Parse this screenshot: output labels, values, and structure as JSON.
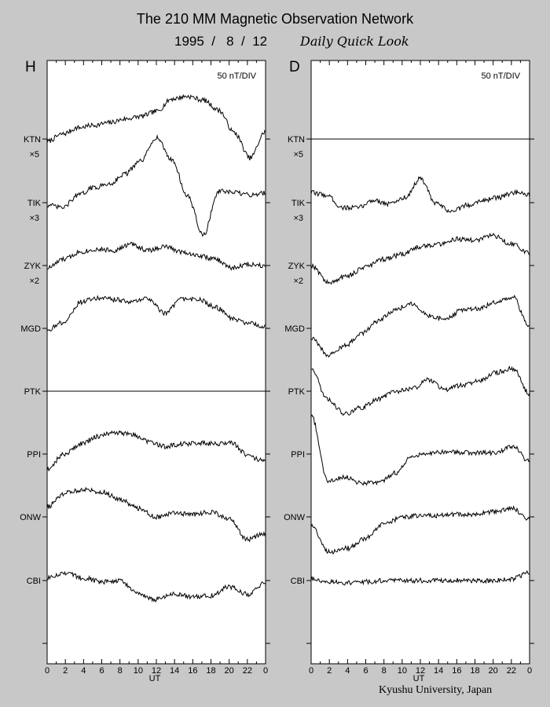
{
  "header": {
    "title": "The 210 MM Magnetic Observation Network",
    "date": "1995  /   8  /  12",
    "subtitle": "Daily Quick Look"
  },
  "footer": {
    "credit": "Kyushu University, Japan"
  },
  "chart_data": {
    "type": "line",
    "scale_label": "50 nT/DIV",
    "xlabel": "UT",
    "x_ticks": [
      "0",
      "2",
      "4",
      "6",
      "8",
      "10",
      "12",
      "14",
      "16",
      "18",
      "20",
      "22",
      "0"
    ],
    "xlim": [
      0,
      24
    ],
    "background": "#ffffff",
    "line_color": "#000000",
    "panels": [
      {
        "name": "H",
        "stations": [
          {
            "code": "KTN",
            "multiplier": "×5",
            "values": [
              -0.2,
              0.4,
              0.9,
              1.1,
              1.3,
              1.6,
              1.8,
              2.2,
              3.2,
              3.4,
              3.1,
              2.3,
              0.5,
              -1.5,
              0.6
            ]
          },
          {
            "code": "TIK",
            "multiplier": "×3",
            "values": [
              -0.2,
              -0.4,
              0.6,
              1.2,
              1.5,
              2.3,
              3.3,
              5.2,
              3.4,
              0.5,
              -2.6,
              0.9,
              0.8,
              0.6,
              0.8
            ]
          },
          {
            "code": "ZYK",
            "multiplier": "×2",
            "values": [
              -0.2,
              0.5,
              1.1,
              1.3,
              1.2,
              1.7,
              1.2,
              1.5,
              1.1,
              0.8,
              0.5,
              -0.2,
              0.1,
              0.0
            ]
          },
          {
            "code": "MGD",
            "multiplier": "",
            "values": [
              -0.1,
              0.5,
              2.1,
              2.4,
              2.3,
              2.1,
              2.4,
              1.2,
              2.3,
              2.3,
              1.7,
              0.8,
              0.4,
              0.1
            ]
          },
          {
            "code": "PTK",
            "multiplier": "",
            "values": [
              0,
              0,
              0,
              0,
              0,
              0,
              0,
              0,
              0,
              0,
              0,
              0,
              0
            ]
          },
          {
            "code": "PPI",
            "multiplier": "",
            "values": [
              -1.2,
              0.0,
              0.8,
              1.4,
              1.7,
              1.6,
              1.0,
              0.6,
              0.8,
              0.9,
              0.8,
              0.9,
              -0.2,
              -0.6
            ]
          },
          {
            "code": "ONW",
            "multiplier": "",
            "values": [
              0.8,
              1.9,
              2.2,
              2.0,
              1.4,
              0.7,
              0.0,
              0.3,
              0.2,
              0.4,
              -0.2,
              -1.8,
              -1.3
            ]
          },
          {
            "code": "CBI",
            "multiplier": "",
            "values": [
              0.2,
              0.6,
              0.2,
              -0.1,
              0.0,
              -1.1,
              -1.5,
              -1.1,
              -1.3,
              -1.2,
              -0.5,
              -1.1,
              -0.2
            ]
          }
        ]
      },
      {
        "name": "D",
        "stations": [
          {
            "code": "KTN",
            "multiplier": "×5",
            "values": [
              0,
              0,
              0,
              0,
              0,
              0,
              0,
              0,
              0,
              0,
              0,
              0,
              0
            ]
          },
          {
            "code": "TIK",
            "multiplier": "×3",
            "values": [
              0.8,
              0.6,
              -0.4,
              -0.4,
              0.2,
              -0.1,
              0.4,
              1.9,
              -0.1,
              -0.7,
              -0.2,
              0.2,
              0.4,
              0.8,
              0.6
            ]
          },
          {
            "code": "ZYK",
            "multiplier": "×2",
            "values": [
              0.0,
              -1.4,
              -0.8,
              -0.1,
              0.5,
              0.9,
              1.5,
              1.7,
              2.1,
              2.0,
              2.4,
              1.7,
              1.0
            ]
          },
          {
            "code": "MGD",
            "multiplier": "",
            "values": [
              -0.8,
              -2.1,
              -1.4,
              -0.4,
              0.6,
              1.5,
              2.0,
              1.0,
              0.7,
              1.5,
              1.6,
              2.1,
              2.5,
              0.1
            ]
          },
          {
            "code": "PTK",
            "multiplier": "",
            "values": [
              1.8,
              -0.7,
              -1.8,
              -1.3,
              -0.6,
              0.0,
              0.2,
              0.9,
              0.1,
              0.5,
              0.8,
              1.5,
              1.8,
              -0.2
            ]
          },
          {
            "code": "PPI",
            "multiplier": "",
            "values": [
              3.1,
              -2.2,
              -1.8,
              -2.3,
              -2.3,
              -1.5,
              -0.2,
              0.1,
              0.2,
              0.1,
              0.1,
              0.1,
              0.6,
              -0.6
            ]
          },
          {
            "code": "ONW",
            "multiplier": "",
            "values": [
              -0.7,
              -2.8,
              -2.5,
              -1.7,
              -0.6,
              0.0,
              0.1,
              0.1,
              0.2,
              0.2,
              0.4,
              0.7,
              -0.2
            ]
          },
          {
            "code": "CBI",
            "multiplier": "",
            "values": [
              0.1,
              -0.1,
              -0.2,
              -0.1,
              0.0,
              0.0,
              0.0,
              0.0,
              0.0,
              0.0,
              0.0,
              0.1,
              0.6
            ]
          }
        ]
      }
    ]
  }
}
